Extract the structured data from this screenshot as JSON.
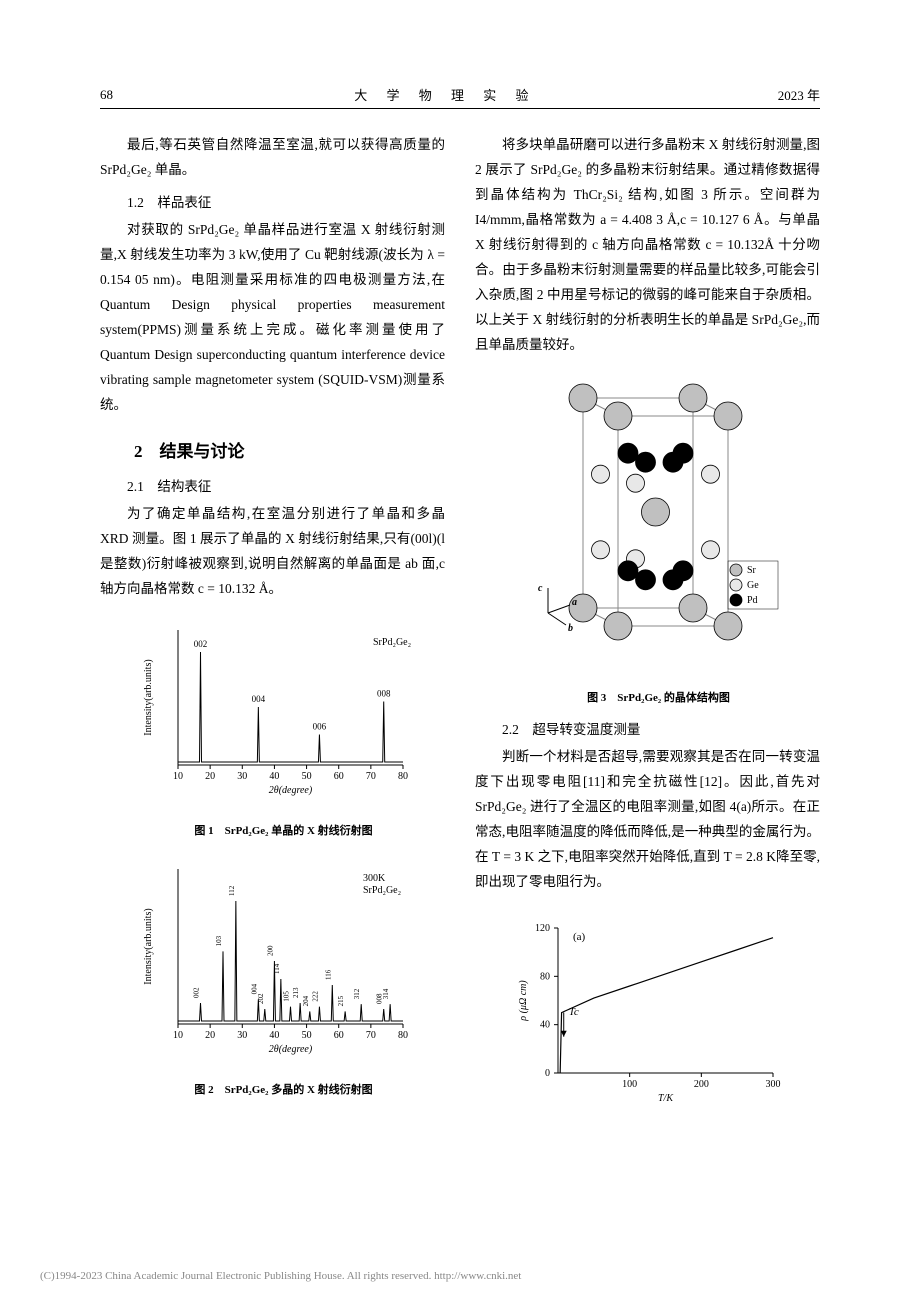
{
  "header": {
    "page_number": "68",
    "journal_title": "大 学 物 理 实 验",
    "year": "2023 年"
  },
  "left_column": {
    "p1": "最后,等石英管自然降温至室温,就可以获得高质量的 SrPd₂Ge₂ 单晶。",
    "sub12_title": "1.2　样品表征",
    "p2": "对获取的 SrPd₂Ge₂ 单晶样品进行室温 X 射线衍射测量,X 射线发生功率为 3 kW,使用了 Cu 靶射线源(波长为 λ = 0.154 05 nm)。电阻测量采用标准的四电极测量方法,在 Quantum Design physical properties measurement system(PPMS)测量系统上完成。磁化率测量使用了 Quantum Design superconducting quantum interference device vibrating sample magnetometer system (SQUID-VSM)测量系统。",
    "section2_title": "2　结果与讨论",
    "sub21_title": "2.1　结构表征",
    "p3": "为了确定单晶结构,在室温分别进行了单晶和多晶 XRD 测量。图 1 展示了单晶的 X 射线衍射结果,只有(00l)(l 是整数)衍射峰被观察到,说明自然解离的单晶面是 ab 面,c 轴方向晶格常数 c = 10.132 Å。",
    "fig1_caption": "图 1　SrPd₂Ge₂ 单晶的 X 射线衍射图",
    "fig2_caption": "图 2　SrPd₂Ge₂ 多晶的 X 射线衍射图"
  },
  "right_column": {
    "p1": "将多块单晶研磨可以进行多晶粉末 X 射线衍射测量,图 2 展示了 SrPd₂Ge₂ 的多晶粉末衍射结果。通过精修数据得到晶体结构为 ThCr₂Si₂ 结构,如图 3 所示。空间群为 I4/mmm,晶格常数为 a = 4.408 3 Å,c = 10.127 6 Å。与单晶 X 射线衍射得到的 c 轴方向晶格常数 c = 10.132Å 十分吻合。由于多晶粉末衍射测量需要的样品量比较多,可能会引入杂质,图 2 中用星号标记的微弱的峰可能来自于杂质相。以上关于 X 射线衍射的分析表明生长的单晶是 SrPd₂Ge₂,而且单晶质量较好。",
    "fig3_caption": "图 3　SrPd₂Ge₂ 的晶体结构图",
    "sub22_title": "2.2　超导转变温度测量",
    "p2": "判断一个材料是否超导,需要观察其是否在同一转变温度下出现零电阻[11]和完全抗磁性[12]。因此,首先对 SrPd₂Ge₂ 进行了全温区的电阻率测量,如图 4(a)所示。在正常态,电阻率随温度的降低而降低,是一种典型的金属行为。在 T = 3 K 之下,电阻率突然开始降低,直到 T = 2.8 K降至零,即出现了零电阻行为。"
  },
  "fig1": {
    "type": "xrd",
    "title": "SrPd₂Ge₂",
    "xlabel": "2θ(degree)",
    "ylabel": "Intensity(arb.units)",
    "xlim": [
      10,
      80
    ],
    "xticks": [
      10,
      20,
      30,
      40,
      50,
      60,
      70,
      80
    ],
    "peaks": [
      {
        "x": 17,
        "h": 100,
        "label": "002"
      },
      {
        "x": 35,
        "h": 50,
        "label": "004"
      },
      {
        "x": 54,
        "h": 25,
        "label": "006"
      },
      {
        "x": 74,
        "h": 55,
        "label": "008"
      }
    ],
    "line_color": "#000000",
    "bg_color": "#ffffff"
  },
  "fig2": {
    "type": "xrd",
    "title_top": "300K",
    "title": "SrPd₂Ge₂",
    "xlabel": "2θ(degree)",
    "ylabel": "Intensity(arb.units)",
    "xlim": [
      10,
      80
    ],
    "xticks": [
      10,
      20,
      30,
      40,
      50,
      60,
      70,
      80
    ],
    "peaks": [
      {
        "x": 17,
        "h": 15,
        "label": "002"
      },
      {
        "x": 24,
        "h": 58,
        "label": "103"
      },
      {
        "x": 28,
        "h": 100,
        "label": "112"
      },
      {
        "x": 35,
        "h": 18,
        "label": "004"
      },
      {
        "x": 37,
        "h": 10,
        "label": "202"
      },
      {
        "x": 40,
        "h": 50,
        "label": "200"
      },
      {
        "x": 42,
        "h": 35,
        "label": "114"
      },
      {
        "x": 45,
        "h": 12,
        "label": "105"
      },
      {
        "x": 48,
        "h": 15,
        "label": "213"
      },
      {
        "x": 51,
        "h": 8,
        "label": "204"
      },
      {
        "x": 54,
        "h": 12,
        "label": "222"
      },
      {
        "x": 58,
        "h": 30,
        "label": "116"
      },
      {
        "x": 62,
        "h": 8,
        "label": "215"
      },
      {
        "x": 67,
        "h": 14,
        "label": "312"
      },
      {
        "x": 74,
        "h": 10,
        "label": "008"
      },
      {
        "x": 76,
        "h": 14,
        "label": "314"
      }
    ],
    "line_color": "#000000",
    "bg_color": "#ffffff"
  },
  "fig3": {
    "legend": [
      {
        "label": "Sr",
        "color": "#c0c0c0"
      },
      {
        "label": "Ge",
        "color": "#e8e8e8"
      },
      {
        "label": "Pd",
        "color": "#000000"
      }
    ],
    "axes": [
      "a",
      "b",
      "c"
    ]
  },
  "fig4": {
    "type": "line",
    "panel_label": "(a)",
    "tc_label": "Tc",
    "xlabel": "T/K",
    "ylabel": "ρ (μΩ cm)",
    "xlim": [
      0,
      300
    ],
    "xticks": [
      100,
      200,
      300
    ],
    "ylim": [
      0,
      120
    ],
    "yticks": [
      0,
      40,
      80,
      120
    ],
    "line_color": "#000000",
    "data": [
      [
        3,
        0
      ],
      [
        5,
        50
      ],
      [
        50,
        62
      ],
      [
        100,
        72
      ],
      [
        150,
        82
      ],
      [
        200,
        92
      ],
      [
        250,
        102
      ],
      [
        300,
        112
      ]
    ]
  },
  "footer": "(C)1994-2023 China Academic Journal Electronic Publishing House. All rights reserved.    http://www.cnki.net"
}
